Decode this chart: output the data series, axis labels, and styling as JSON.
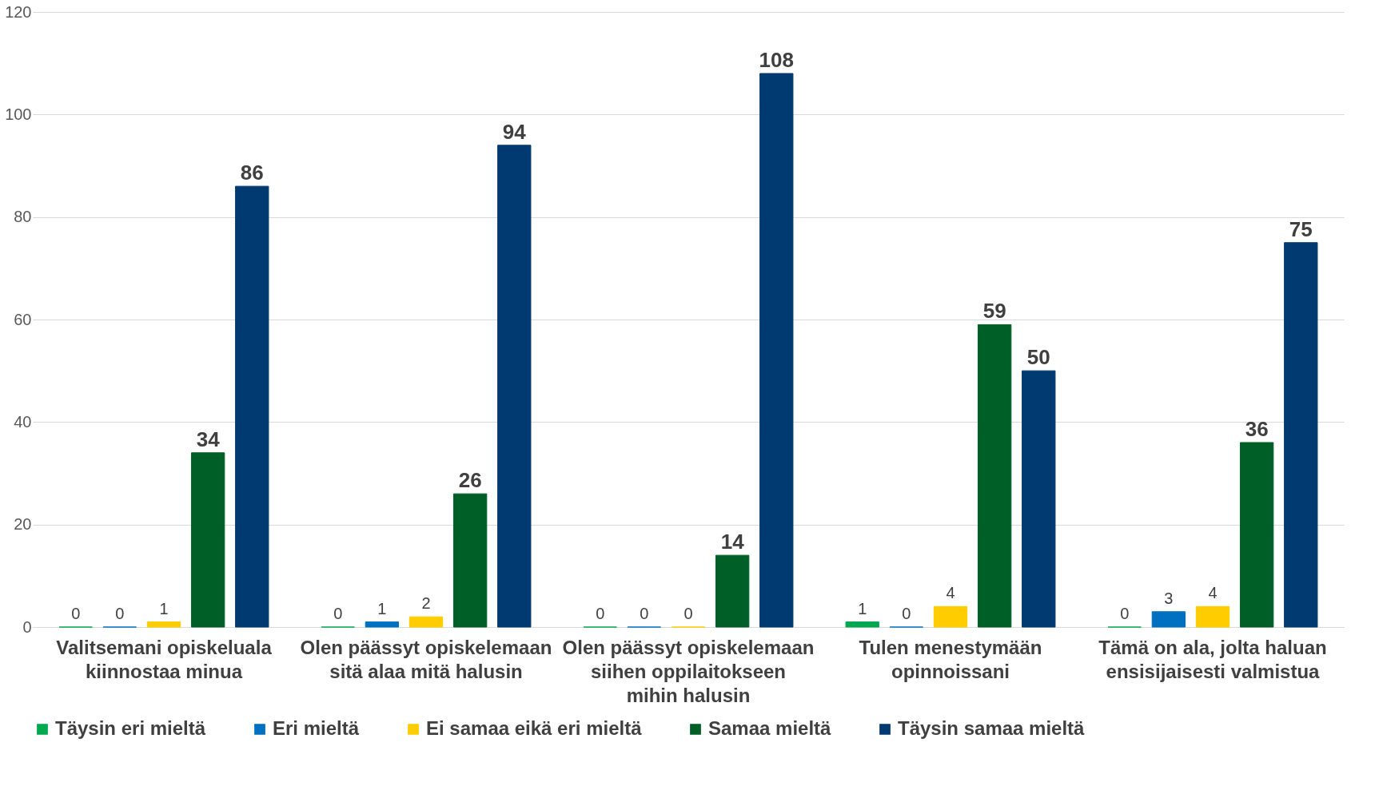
{
  "chart_data": {
    "type": "bar",
    "categories": [
      "Valitsemani opiskeluala kiinnostaa minua",
      "Olen päässyt opiskelemaan sitä alaa mitä halusin",
      "Olen päässyt opiskelemaan siihen oppilaitokseen mihin halusin",
      "Tulen menestymään opinnoissani",
      "Tämä on ala, jolta haluan ensisijaisesti valmistua"
    ],
    "series": [
      {
        "name": "Täysin eri mieltä",
        "color": "#00a84f",
        "values": [
          0,
          0,
          0,
          1,
          0
        ]
      },
      {
        "name": "Eri mieltä",
        "color": "#0070c0",
        "values": [
          0,
          1,
          0,
          0,
          3
        ]
      },
      {
        "name": "Ei samaa eikä eri mieltä",
        "color": "#ffcc00",
        "values": [
          1,
          2,
          0,
          4,
          4
        ]
      },
      {
        "name": "Samaa mieltä",
        "color": "#005f27",
        "values": [
          34,
          26,
          14,
          59,
          36
        ]
      },
      {
        "name": "Täysin samaa mieltä",
        "color": "#003a70",
        "values": [
          86,
          94,
          108,
          50,
          75
        ]
      }
    ],
    "ylim": [
      0,
      120
    ],
    "yticks": [
      0,
      20,
      40,
      60,
      80,
      100,
      120
    ],
    "grid": "y",
    "legend": "bottom",
    "data_labels": true
  }
}
